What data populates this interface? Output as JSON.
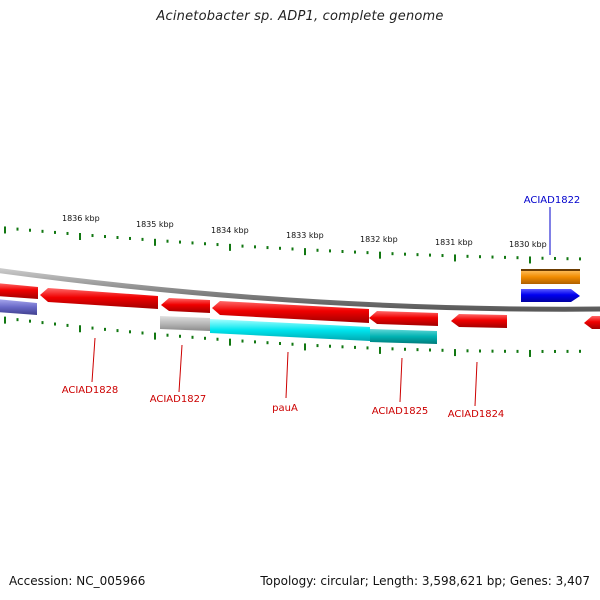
{
  "title": "Acinetobacter sp. ADP1, complete genome",
  "footer": {
    "accession": "Accession: NC_005966",
    "topology": "Topology: circular; Length: 3,598,621 bp; Genes: 3,407"
  },
  "colors": {
    "forward_cds": "#0000ee",
    "reverse_cds": "#ee0000",
    "forward_label": "#0000cc",
    "reverse_label": "#cc0000",
    "cog_orange": "#f28c00",
    "cog_gray": "#b8b8b8",
    "cog_cyan": "#00e5ee",
    "cog_teal": "#00b2b2",
    "cog_purple": "#6a6ac8",
    "backbone": "#8a8a8a",
    "ticks": "#117711"
  },
  "scale": {
    "labels": [
      "1836 kbp",
      "1835 kbp",
      "1834 kbp",
      "1833 kbp",
      "1832 kbp",
      "1831 kbp",
      "1830 kbp"
    ]
  },
  "genes": [
    {
      "label": "ACIAD1822",
      "strand": "forward"
    },
    {
      "label": "ACIAD1828",
      "strand": "reverse"
    },
    {
      "label": "ACIAD1827",
      "strand": "reverse"
    },
    {
      "label": "pauA",
      "strand": "reverse"
    },
    {
      "label": "ACIAD1825",
      "strand": "reverse"
    },
    {
      "label": "ACIAD1824",
      "strand": "reverse"
    }
  ]
}
